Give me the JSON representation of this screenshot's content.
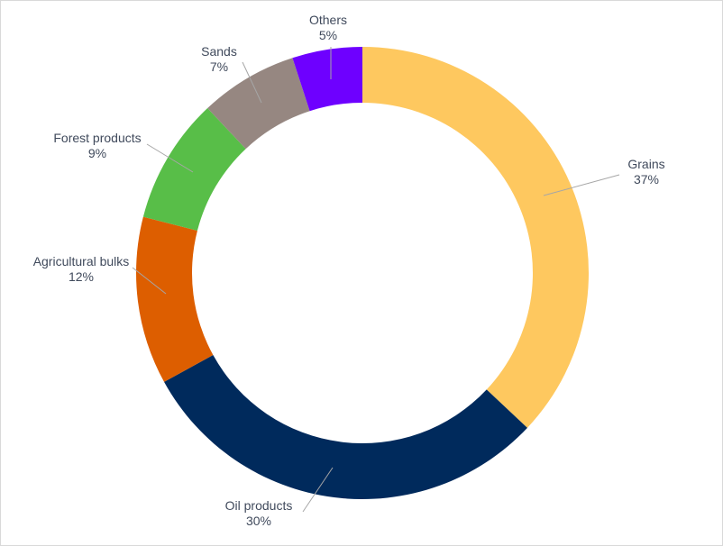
{
  "chart_data": {
    "type": "pie",
    "variant": "donut",
    "title": "",
    "legend": "none",
    "slices": [
      {
        "label": "Grains",
        "value": 37,
        "display": "37%",
        "color": "#FEC85F"
      },
      {
        "label": "Oil products",
        "value": 30,
        "display": "30%",
        "color": "#002A5C"
      },
      {
        "label": "Agricultural bulks",
        "value": 12,
        "display": "12%",
        "color": "#DD5E00"
      },
      {
        "label": "Forest products",
        "value": 9,
        "display": "9%",
        "color": "#58BE48"
      },
      {
        "label": "Sands",
        "value": 7,
        "display": "7%",
        "color": "#968781"
      },
      {
        "label": "Others",
        "value": 5,
        "display": "5%",
        "color": "#6E00FF"
      }
    ]
  }
}
